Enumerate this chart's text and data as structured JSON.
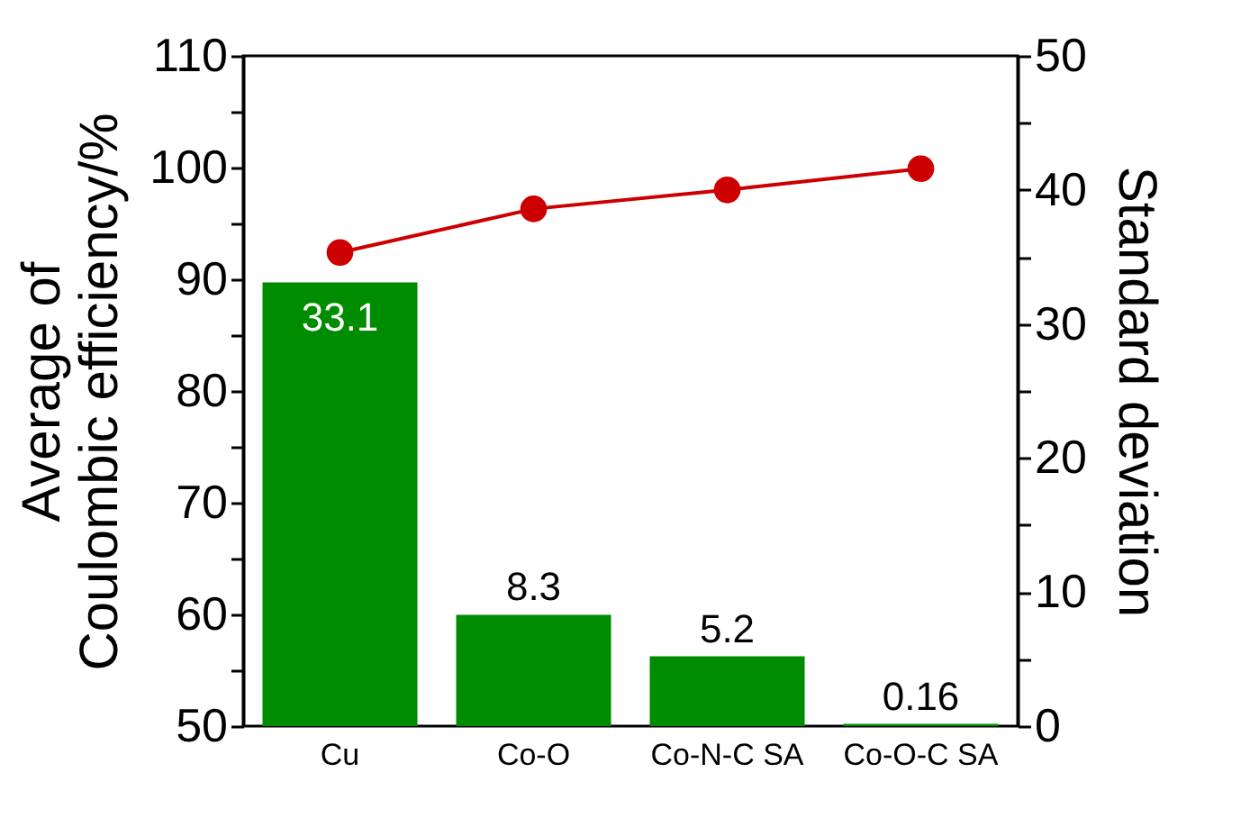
{
  "chart_data": {
    "type": "bar",
    "categories": [
      "Cu",
      "Co-O",
      "Co-N-C SA",
      "Co-O-C SA"
    ],
    "ylabel": "Average of\nCoulombic efficiency/%",
    "y2label": "Standard deviation",
    "ylim": [
      50,
      110
    ],
    "yticks": [
      50,
      {
        "value": 55,
        "label": null
      },
      60,
      {
        "value": 65,
        "label": null
      },
      70,
      {
        "value": 75,
        "label": null
      },
      80,
      {
        "value": 85,
        "label": null
      },
      90,
      {
        "value": 95,
        "label": null
      },
      100,
      {
        "value": 105,
        "label": null
      },
      110
    ],
    "y2lim": [
      0,
      50
    ],
    "y2ticks": [
      0,
      {
        "value": 5,
        "label": null
      },
      10,
      {
        "value": 15,
        "label": null
      },
      20,
      {
        "value": 25,
        "label": null
      },
      30,
      {
        "value": 35,
        "label": null
      },
      40,
      {
        "value": 45,
        "label": null
      },
      50
    ],
    "grid": false,
    "series": [
      {
        "axis": "y2",
        "color": "#008c00",
        "values": [
          33.1,
          8.3,
          5.2,
          0.16
        ],
        "value_labels": [
          "33.1",
          "8.3",
          "5.2",
          "0.16"
        ]
      },
      {
        "type": "line",
        "axis": "y",
        "color": "#cc0000",
        "marker": "circle",
        "line_style": "solid",
        "values": [
          92.4,
          96.3,
          98.0,
          99.9
        ]
      }
    ]
  }
}
